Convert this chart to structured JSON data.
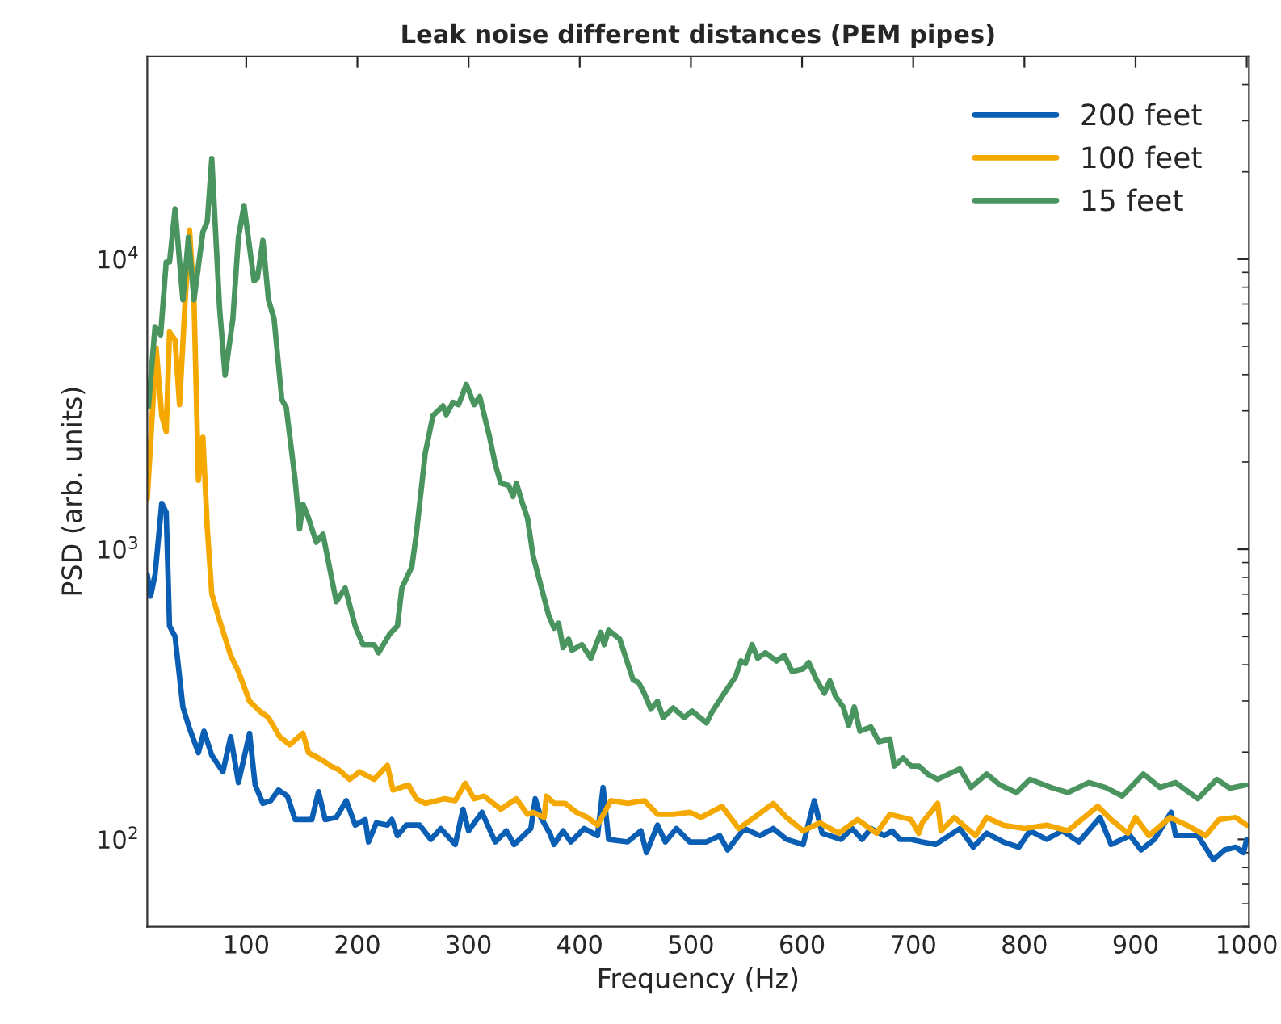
{
  "chart_data": {
    "type": "line",
    "title": "Leak noise different distances (PEM pipes)",
    "xlabel": "Frequency (Hz)",
    "ylabel": "PSD (arb. units)",
    "log": "y",
    "grid": false,
    "legend": "top right",
    "line_style": "solid",
    "marker": "none",
    "xlim": [
      11,
      1002
    ],
    "ylim": [
      50,
      50000
    ],
    "xticks": [
      100,
      200,
      300,
      400,
      500,
      600,
      700,
      800,
      900,
      1000
    ],
    "yticks": [
      {
        "value": 100,
        "label": "10$^{2}$"
      },
      {
        "value": 1000,
        "label": "10$^{3}$"
      },
      {
        "value": 10000,
        "label": "10$^{4}$"
      }
    ],
    "series": [
      {
        "name": "200 feet",
        "color": "#0a5fb4",
        "x": [
          11,
          14,
          18,
          24,
          28,
          31,
          36,
          43,
          49,
          57,
          62,
          69,
          79,
          86,
          93,
          103,
          108,
          115,
          122,
          129,
          137,
          144,
          159,
          165,
          171,
          181,
          190,
          198,
          207,
          210,
          217,
          227,
          231,
          236,
          244,
          256,
          266,
          275,
          288,
          295,
          300,
          312,
          324,
          334,
          341,
          356,
          360,
          365,
          373,
          377,
          385,
          392,
          404,
          416,
          421,
          426,
          443,
          455,
          460,
          470,
          477,
          487,
          499,
          514,
          526,
          533,
          548,
          562,
          574,
          586,
          601,
          611,
          618,
          635,
          645,
          654,
          662,
          674,
          681,
          688,
          698,
          708,
          720,
          742,
          754,
          766,
          781,
          795,
          805,
          820,
          834,
          849,
          868,
          878,
          895,
          905,
          917,
          932,
          936,
          956,
          970,
          980,
          990,
          997,
          1000
        ],
        "values": [
          817,
          689,
          817,
          1440,
          1340,
          544,
          500,
          286,
          241,
          199,
          236,
          195,
          171,
          226,
          157,
          232,
          154,
          133,
          136,
          148,
          141,
          117,
          117,
          146,
          117,
          119,
          136,
          112,
          117,
          98,
          114,
          112,
          117,
          103,
          112,
          112,
          100,
          109,
          96,
          127,
          107,
          124,
          98,
          107,
          96,
          109,
          138,
          119,
          105,
          96,
          107,
          98,
          109,
          103,
          151,
          100,
          98,
          107,
          90,
          112,
          98,
          109,
          98,
          98,
          103,
          92,
          109,
          103,
          109,
          100,
          96,
          136,
          105,
          100,
          109,
          100,
          109,
          103,
          107,
          100,
          100,
          98,
          96,
          109,
          94,
          105,
          98,
          94,
          107,
          100,
          107,
          98,
          119,
          96,
          103,
          92,
          100,
          124,
          103,
          103,
          85,
          92,
          94,
          90,
          100
        ]
      },
      {
        "name": "100 feet",
        "color": "#f5a800",
        "x": [
          11,
          19,
          24,
          28,
          31,
          36,
          40,
          45,
          49,
          53,
          57,
          61,
          65,
          69,
          76,
          86,
          93,
          103,
          113,
          120,
          130,
          139,
          151,
          156,
          169,
          176,
          183,
          193,
          202,
          215,
          227,
          232,
          246,
          253,
          261,
          278,
          288,
          297,
          305,
          314,
          329,
          343,
          353,
          358,
          368,
          370,
          377,
          387,
          397,
          407,
          416,
          428,
          443,
          458,
          470,
          484,
          499,
          509,
          518,
          528,
          543,
          557,
          574,
          586,
          601,
          616,
          633,
          650,
          667,
          679,
          698,
          705,
          708,
          722,
          725,
          737,
          756,
          766,
          781,
          800,
          820,
          839,
          866,
          878,
          893,
          900,
          912,
          931,
          946,
          963,
          975,
          990,
          1000
        ],
        "values": [
          1490,
          4930,
          2890,
          2540,
          5610,
          5260,
          3150,
          7100,
          12600,
          7240,
          1730,
          2430,
          1175,
          703,
          569,
          430,
          379,
          299,
          275,
          263,
          226,
          212,
          232,
          199,
          187,
          179,
          174,
          161,
          171,
          161,
          180,
          148,
          154,
          138,
          133,
          138,
          136,
          156,
          138,
          141,
          127,
          138,
          122,
          124,
          119,
          141,
          133,
          133,
          124,
          119,
          112,
          136,
          133,
          136,
          122,
          122,
          124,
          119,
          124,
          130,
          109,
          119,
          133,
          119,
          107,
          114,
          105,
          117,
          105,
          122,
          117,
          105,
          114,
          133,
          107,
          119,
          103,
          119,
          112,
          109,
          112,
          107,
          130,
          117,
          105,
          119,
          103,
          119,
          112,
          103,
          117,
          119,
          112
        ]
      },
      {
        "name": "15 feet",
        "color": "#4a9460",
        "x": [
          12,
          18,
          23,
          28,
          31,
          36,
          43,
          48,
          53,
          61,
          65,
          69,
          76,
          81,
          88,
          93,
          98,
          107,
          110,
          115,
          120,
          125,
          132,
          136,
          144,
          148,
          151,
          156,
          163,
          169,
          181,
          189,
          198,
          205,
          215,
          219,
          229,
          236,
          240,
          249,
          253,
          261,
          268,
          277,
          280,
          286,
          291,
          298,
          305,
          310,
          319,
          324,
          329,
          336,
          340,
          343,
          348,
          353,
          358,
          372,
          377,
          381,
          385,
          390,
          393,
          402,
          410,
          419,
          422,
          426,
          436,
          448,
          453,
          458,
          464,
          470,
          475,
          484,
          494,
          501,
          514,
          519,
          530,
          540,
          545,
          549,
          555,
          560,
          567,
          577,
          584,
          591,
          601,
          606,
          613,
          620,
          625,
          630,
          637,
          642,
          647,
          652,
          662,
          669,
          679,
          683,
          691,
          698,
          705,
          713,
          722,
          742,
          752,
          766,
          778,
          793,
          805,
          824,
          839,
          858,
          873,
          888,
          907,
          922,
          936,
          956,
          973,
          985,
          999
        ],
        "values": [
          3100,
          5850,
          5480,
          9770,
          9770,
          14900,
          7240,
          11900,
          7240,
          12400,
          13500,
          22200,
          6790,
          3980,
          6240,
          11900,
          15300,
          8410,
          8600,
          11600,
          7240,
          6240,
          3280,
          3080,
          1730,
          1175,
          1430,
          1280,
          1057,
          1127,
          659,
          735,
          544,
          469,
          469,
          440,
          510,
          544,
          735,
          871,
          1127,
          2140,
          2890,
          3120,
          2910,
          3210,
          3150,
          3700,
          3150,
          3360,
          2430,
          1960,
          1690,
          1660,
          1520,
          1690,
          1460,
          1280,
          950,
          593,
          534,
          556,
          458,
          490,
          449,
          469,
          421,
          517,
          469,
          526,
          490,
          355,
          347,
          319,
          281,
          299,
          263,
          284,
          263,
          277,
          252,
          275,
          319,
          363,
          412,
          404,
          469,
          421,
          440,
          412,
          431,
          379,
          387,
          407,
          355,
          319,
          352,
          312,
          286,
          247,
          286,
          236,
          244,
          217,
          222,
          179,
          191,
          179,
          179,
          168,
          161,
          175,
          151,
          168,
          154,
          145,
          161,
          151,
          145,
          157,
          151,
          141,
          168,
          151,
          157,
          138,
          161,
          150,
          154
        ]
      }
    ]
  }
}
